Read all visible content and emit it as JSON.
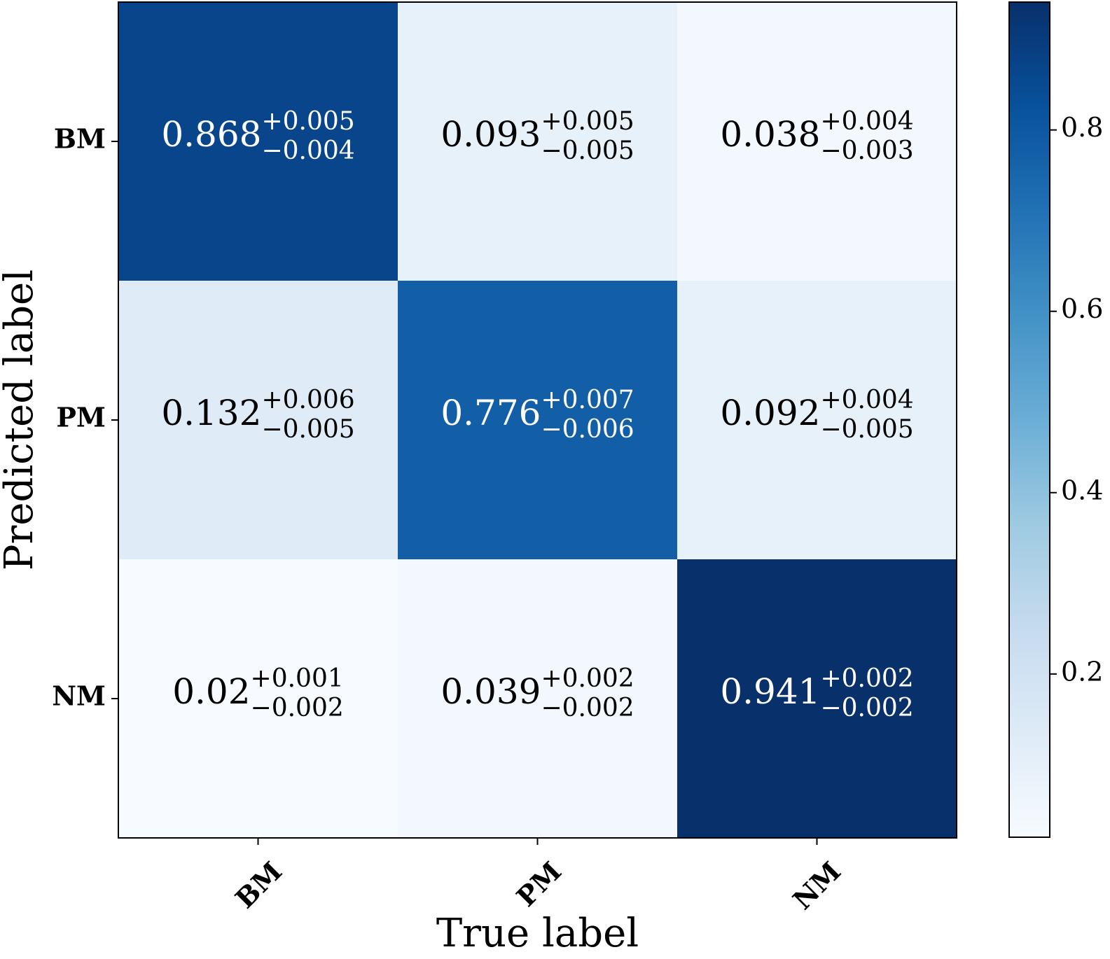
{
  "chart_data": {
    "type": "heatmap",
    "xlabel": "True label",
    "ylabel": "Predicted label",
    "x_categories": [
      "BM",
      "PM",
      "NM"
    ],
    "y_categories": [
      "BM",
      "PM",
      "NM"
    ],
    "values": [
      [
        0.868,
        0.093,
        0.038
      ],
      [
        0.132,
        0.776,
        0.092
      ],
      [
        0.02,
        0.039,
        0.941
      ]
    ],
    "labels": [
      [
        {
          "value": "0.868",
          "plus": "+0.005",
          "minus": "−0.004"
        },
        {
          "value": "0.093",
          "plus": "+0.005",
          "minus": "−0.005"
        },
        {
          "value": "0.038",
          "plus": "+0.004",
          "minus": "−0.003"
        }
      ],
      [
        {
          "value": "0.132",
          "plus": "+0.006",
          "minus": "−0.005"
        },
        {
          "value": "0.776",
          "plus": "+0.007",
          "minus": "−0.006"
        },
        {
          "value": "0.092",
          "plus": "+0.004",
          "minus": "−0.005"
        }
      ],
      [
        {
          "value": "0.02",
          "plus": "+0.001",
          "minus": "−0.002"
        },
        {
          "value": "0.039",
          "plus": "+0.002",
          "minus": "−0.002"
        },
        {
          "value": "0.941",
          "plus": "+0.002",
          "minus": "−0.002"
        }
      ]
    ],
    "colormap": "Blues",
    "colorbar": {
      "range": [
        0.02,
        0.941
      ],
      "ticks": [
        0.2,
        0.4,
        0.6,
        0.8
      ],
      "tick_labels": [
        "0.2",
        "0.4",
        "0.6",
        "0.8"
      ]
    }
  }
}
